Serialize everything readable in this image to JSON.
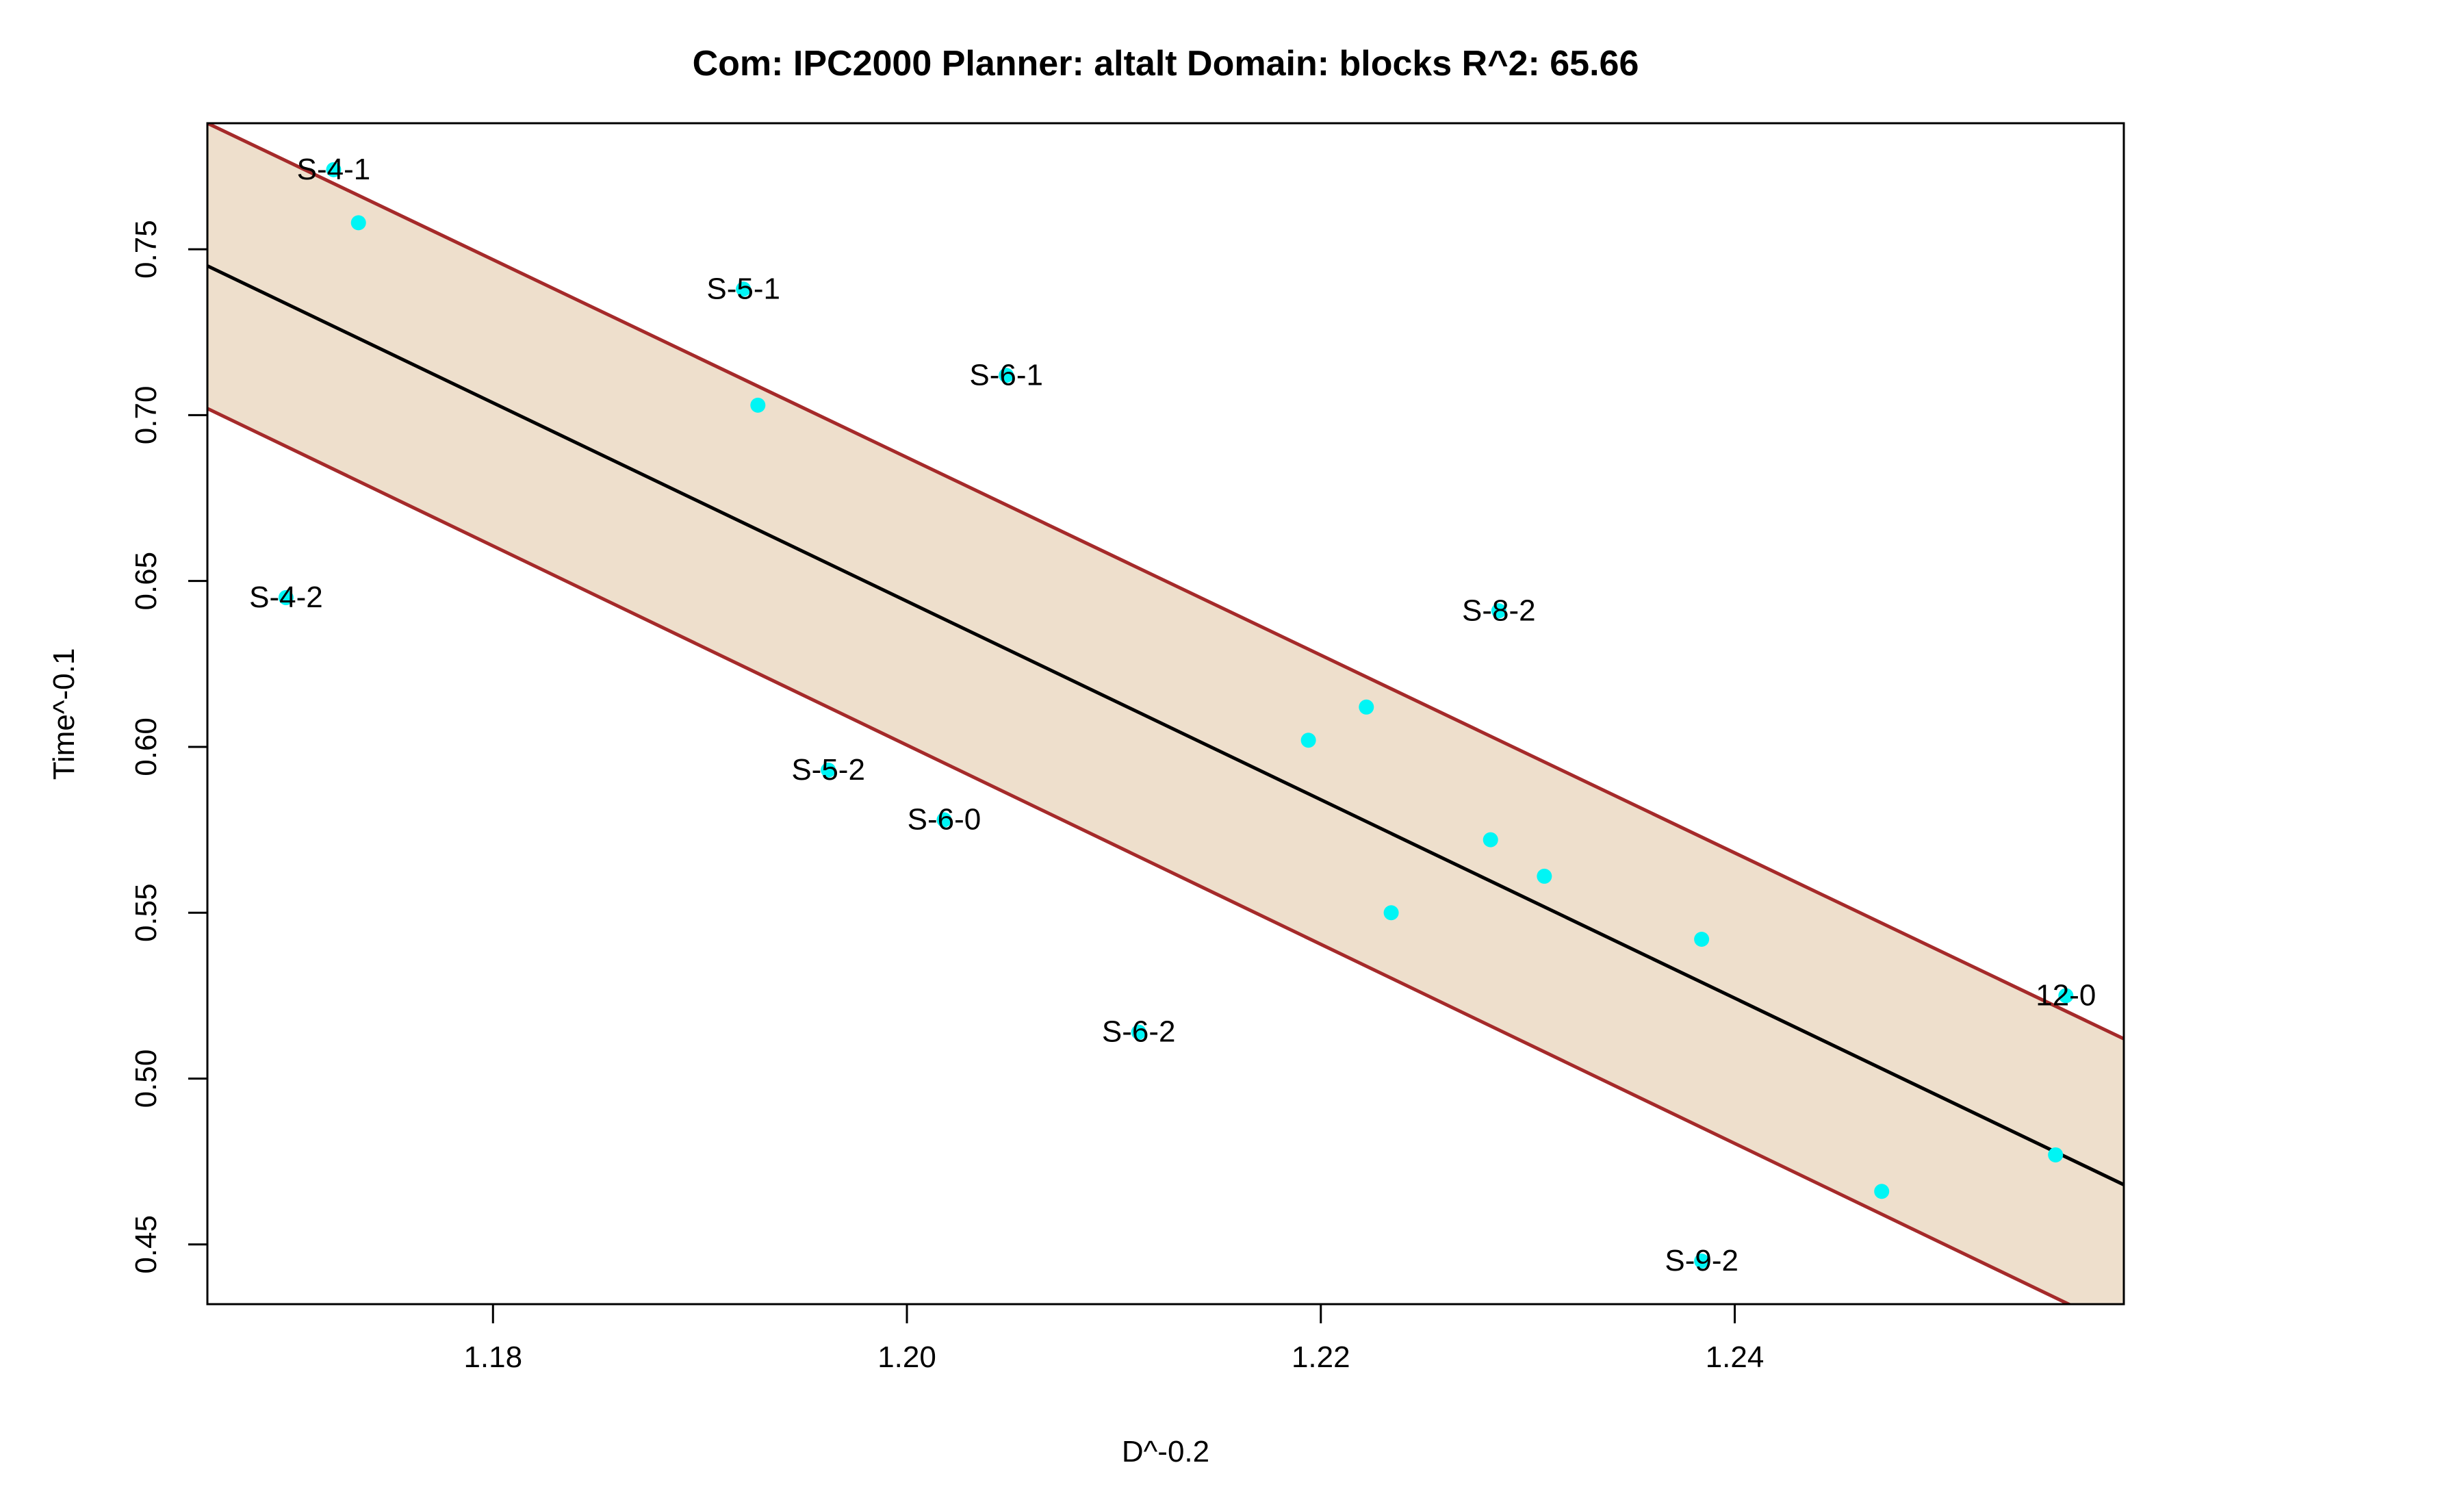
{
  "chart_data": {
    "type": "scatter",
    "title": "Com: IPC2000 Planner: altalt Domain: blocks R^2: 65.66",
    "xlabel": "D^-0.2",
    "ylabel": "Time^-0.1",
    "xlim": [
      1.1662,
      1.2588
    ],
    "ylim": [
      0.432,
      0.788
    ],
    "xticks": [
      1.18,
      1.2,
      1.22,
      1.24
    ],
    "xtick_labels": [
      "1.18",
      "1.20",
      "1.22",
      "1.24"
    ],
    "yticks": [
      0.45,
      0.5,
      0.55,
      0.6,
      0.65,
      0.7,
      0.75
    ],
    "ytick_labels": [
      "0.45",
      "0.50",
      "0.55",
      "0.60",
      "0.65",
      "0.70",
      "0.75"
    ],
    "grid": false,
    "colors": {
      "points": "#00f5f5",
      "fit_line": "#000000",
      "band_fill": "#eedfcc",
      "band_edge": "#a52a2a"
    },
    "regression": {
      "x": [
        1.1662,
        1.2588
      ],
      "y": [
        0.745,
        0.468
      ]
    },
    "band_upper": {
      "x": [
        1.1662,
        1.2588
      ],
      "y": [
        0.788,
        0.512
      ]
    },
    "band_lower": {
      "x": [
        1.1662,
        1.2588
      ],
      "y": [
        0.702,
        0.424
      ]
    },
    "points": [
      {
        "x": 1.1723,
        "y": 0.774,
        "label": "S-4-1"
      },
      {
        "x": 1.1735,
        "y": 0.758,
        "label": ""
      },
      {
        "x": 1.1921,
        "y": 0.738,
        "label": "S-5-1"
      },
      {
        "x": 1.1928,
        "y": 0.703,
        "label": ""
      },
      {
        "x": 1.2048,
        "y": 0.712,
        "label": "S-6-1"
      },
      {
        "x": 1.17,
        "y": 0.645,
        "label": "S-4-2"
      },
      {
        "x": 1.1962,
        "y": 0.593,
        "label": "S-5-2"
      },
      {
        "x": 1.2018,
        "y": 0.578,
        "label": "S-6-0"
      },
      {
        "x": 1.2112,
        "y": 0.514,
        "label": "S-6-2"
      },
      {
        "x": 1.2194,
        "y": 0.602,
        "label": ""
      },
      {
        "x": 1.2222,
        "y": 0.612,
        "label": ""
      },
      {
        "x": 1.2234,
        "y": 0.55,
        "label": ""
      },
      {
        "x": 1.2282,
        "y": 0.572,
        "label": ""
      },
      {
        "x": 1.2286,
        "y": 0.641,
        "label": "S-8-2"
      },
      {
        "x": 1.2308,
        "y": 0.561,
        "label": ""
      },
      {
        "x": 1.2384,
        "y": 0.542,
        "label": ""
      },
      {
        "x": 1.2384,
        "y": 0.445,
        "label": "S-9-2"
      },
      {
        "x": 1.2471,
        "y": 0.466,
        "label": ""
      },
      {
        "x": 1.2555,
        "y": 0.477,
        "label": ""
      },
      {
        "x": 1.256,
        "y": 0.525,
        "label": "12-0"
      }
    ]
  }
}
